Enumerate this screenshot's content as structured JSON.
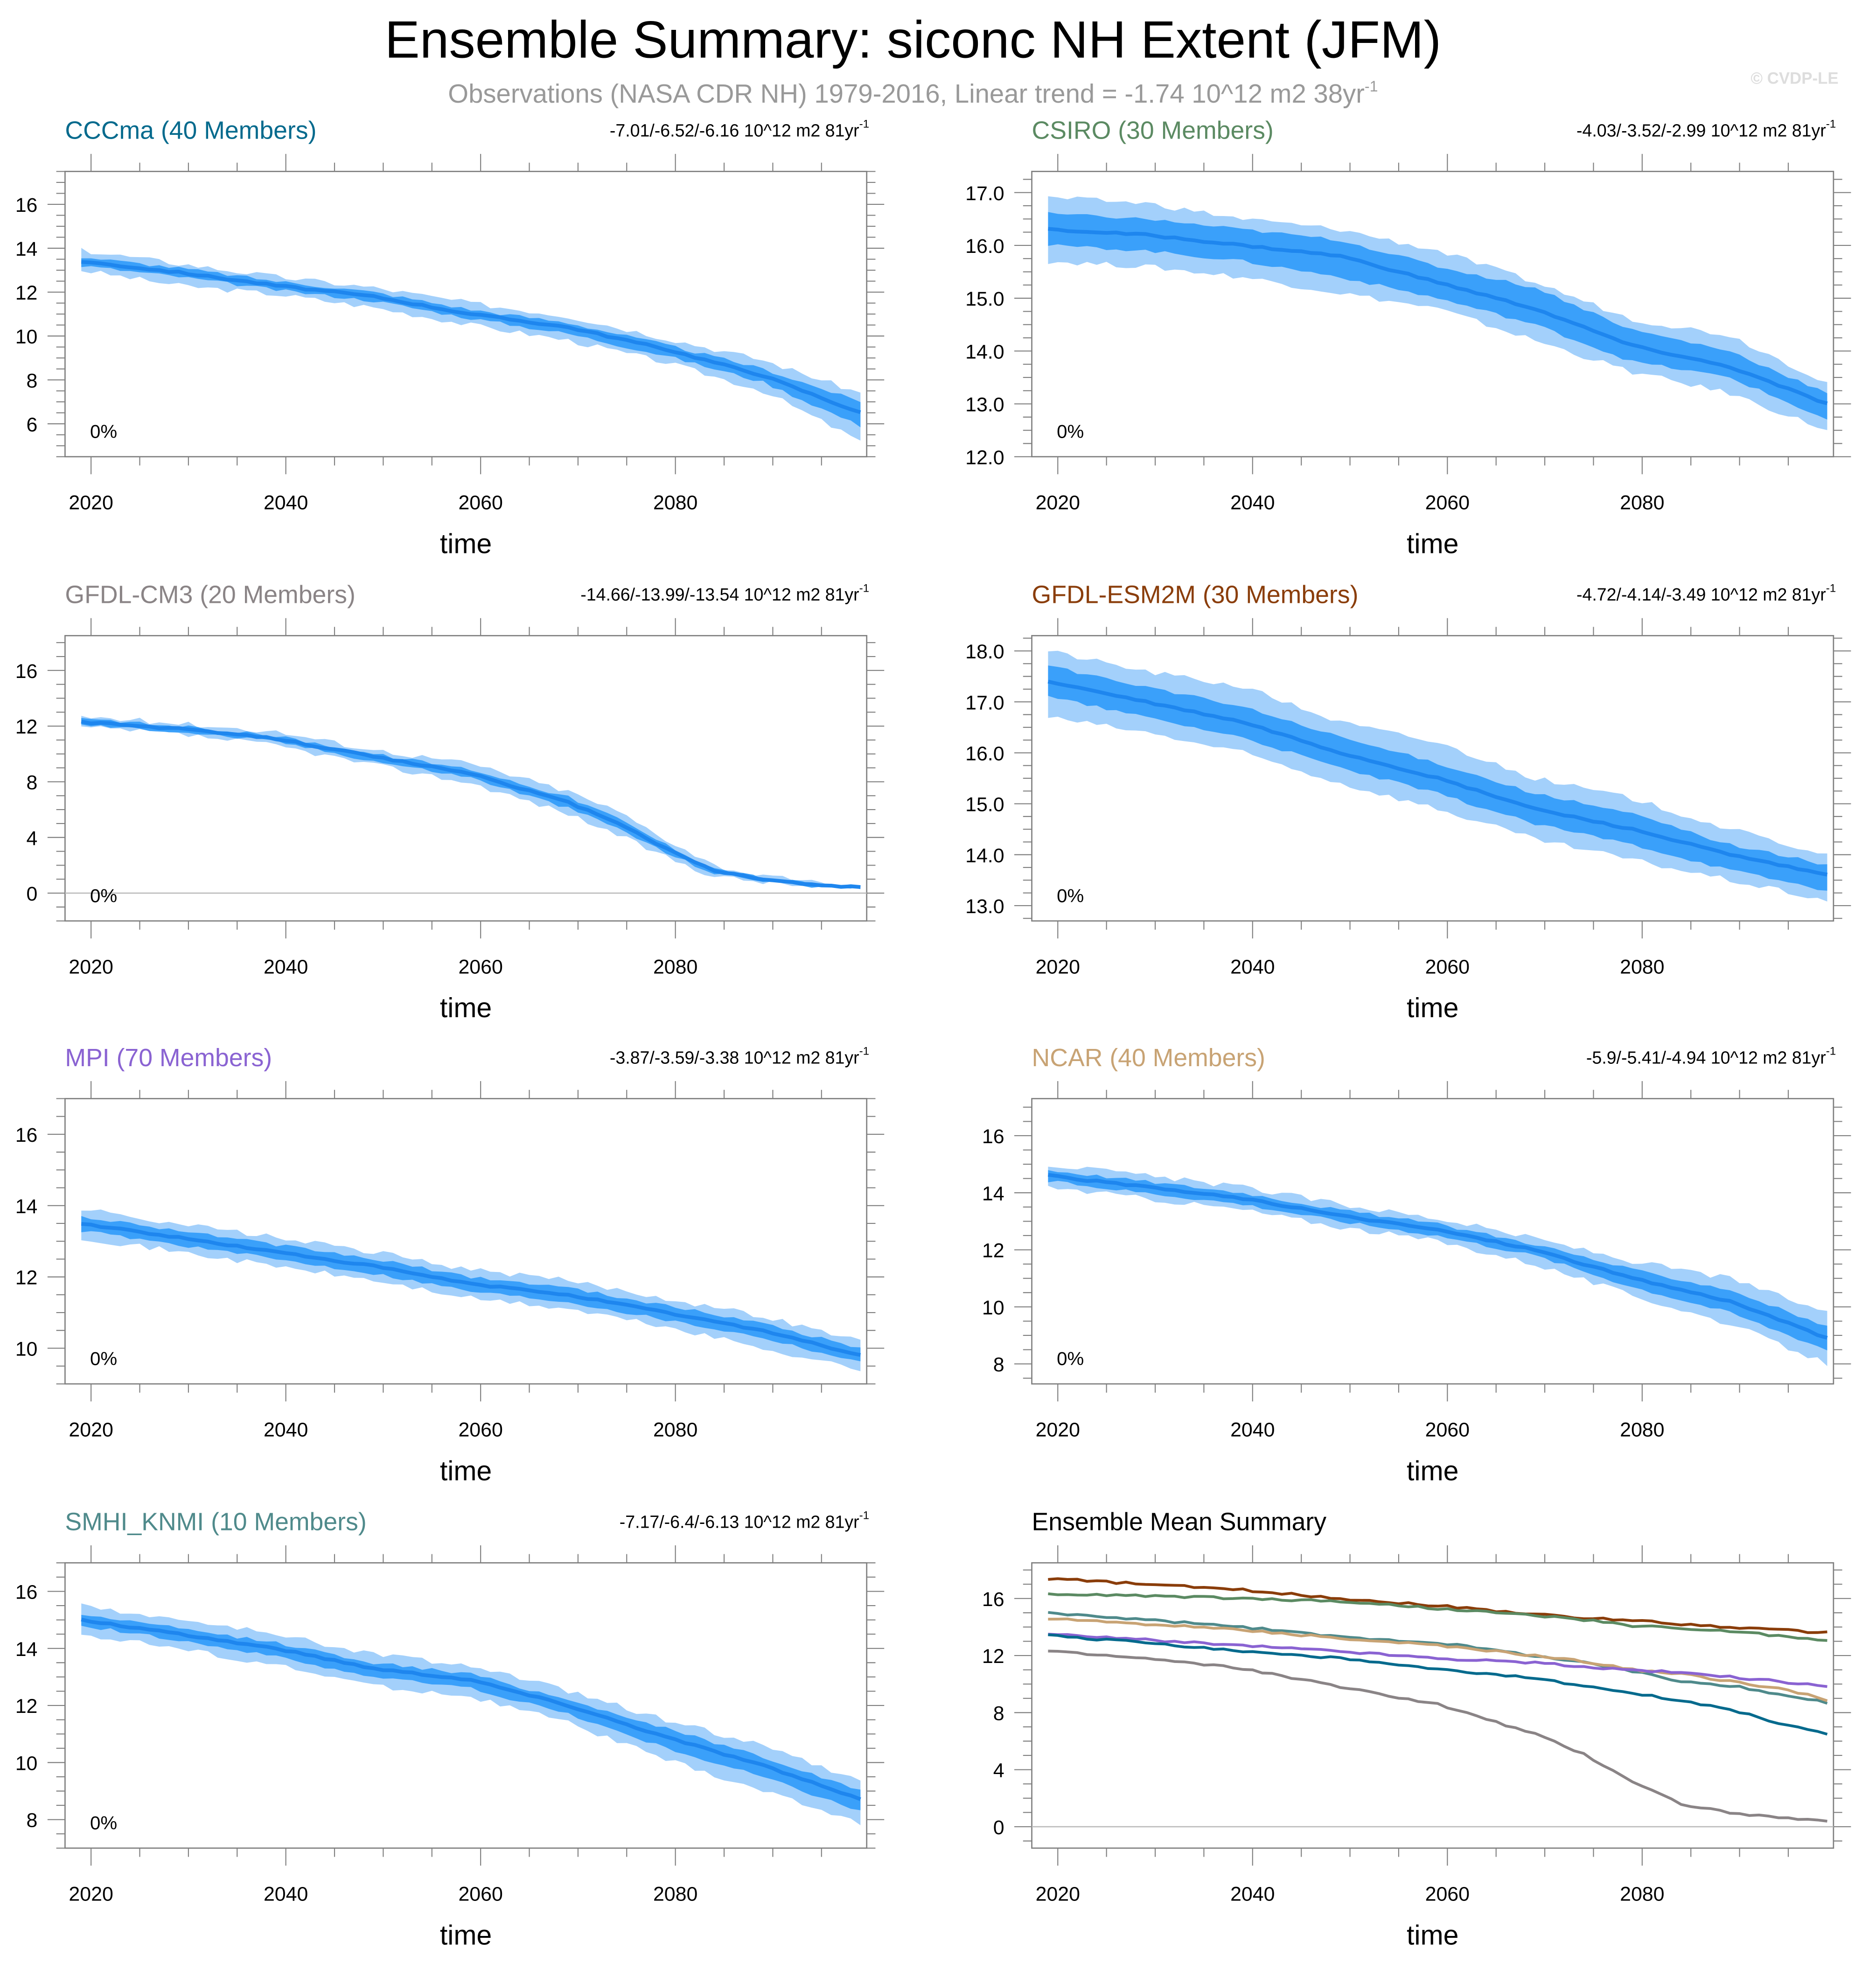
{
  "title": "Ensemble Summary: siconc NH Extent (JFM)",
  "subtitle": "Observations (NASA CDR NH) 1979-2016, Linear trend = -1.74 10^12 m2 38yr",
  "subtitle_superscript": "-1",
  "copyright": "© CVDP-LE",
  "colors": {
    "band_outer": "#a3d0fb",
    "band_inner": "#3aa0fa",
    "mean_line": "#1e86ee",
    "axis": "#7f7f7f",
    "text": "#000000",
    "subtitle": "#999999",
    "copyright": "#dddddd"
  },
  "chart_data": [
    {
      "type": "area",
      "title": "CCCma (40 Members)",
      "title_color": "#046a8d",
      "trend_label": "-7.01/-6.52/-6.16 10^12 m2 81yr",
      "trend_superscript": "-1",
      "annotation": "0%",
      "xlabel": "time",
      "ylabel": "",
      "xlim": [
        2019,
        2099
      ],
      "ylim": [
        4.5,
        17.5
      ],
      "xticks": [
        2020,
        2040,
        2060,
        2080
      ],
      "yticks": [
        6,
        8,
        10,
        12,
        14,
        16
      ],
      "ytick_labels": [
        "6",
        "8",
        "10",
        "12",
        "14",
        "16"
      ],
      "x": [
        2019,
        2029,
        2039,
        2049,
        2059,
        2069,
        2079,
        2089,
        2099
      ],
      "series": [
        {
          "name": "ensemble mean",
          "values": [
            13.4,
            12.9,
            12.3,
            11.8,
            11.0,
            10.4,
            9.4,
            8.2,
            6.5
          ]
        },
        {
          "name": "inner band low",
          "values": [
            13.2,
            12.7,
            12.1,
            11.6,
            10.8,
            10.1,
            9.1,
            7.9,
            5.9
          ]
        },
        {
          "name": "inner band high",
          "values": [
            13.6,
            13.1,
            12.5,
            12.0,
            11.2,
            10.6,
            9.6,
            8.5,
            7.0
          ]
        },
        {
          "name": "outer band low",
          "values": [
            13.0,
            12.3,
            11.9,
            11.3,
            10.5,
            9.8,
            8.8,
            7.5,
            5.2
          ]
        },
        {
          "name": "outer band high",
          "values": [
            13.9,
            13.3,
            12.7,
            12.2,
            11.5,
            10.9,
            9.9,
            8.9,
            7.4
          ]
        }
      ]
    },
    {
      "type": "area",
      "title": "CSIRO (30 Members)",
      "title_color": "#5b8a62",
      "trend_label": "-4.03/-3.52/-2.99 10^12 m2 81yr",
      "trend_superscript": "-1",
      "annotation": "0%",
      "xlabel": "time",
      "ylabel": "",
      "xlim": [
        2019,
        2099
      ],
      "ylim": [
        12.0,
        17.4
      ],
      "xticks": [
        2020,
        2040,
        2060,
        2080
      ],
      "yticks": [
        12,
        13,
        14,
        15,
        16,
        17
      ],
      "ytick_labels": [
        "12.0",
        "13.0",
        "14.0",
        "15.0",
        "16.0",
        "17.0"
      ],
      "x": [
        2019,
        2029,
        2039,
        2049,
        2059,
        2069,
        2079,
        2089,
        2099
      ],
      "series": [
        {
          "name": "ensemble mean",
          "values": [
            16.3,
            16.2,
            16.0,
            15.8,
            15.3,
            14.8,
            14.1,
            13.7,
            13.0
          ]
        },
        {
          "name": "inner band low",
          "values": [
            16.0,
            15.9,
            15.7,
            15.4,
            15.0,
            14.5,
            13.8,
            13.5,
            12.7
          ]
        },
        {
          "name": "inner band high",
          "values": [
            16.6,
            16.5,
            16.3,
            16.1,
            15.6,
            15.2,
            14.4,
            14.0,
            13.2
          ]
        },
        {
          "name": "outer band low",
          "values": [
            15.7,
            15.6,
            15.4,
            15.1,
            14.8,
            14.2,
            13.6,
            13.2,
            12.5
          ]
        },
        {
          "name": "outer band high",
          "values": [
            16.9,
            16.8,
            16.5,
            16.3,
            15.9,
            15.3,
            14.6,
            14.3,
            13.4
          ]
        }
      ]
    },
    {
      "type": "area",
      "title": "GFDL-CM3 (20 Members)",
      "title_color": "#8a8486",
      "trend_label": "-14.66/-13.99/-13.54 10^12 m2 81yr",
      "trend_superscript": "-1",
      "annotation": "0%",
      "xlabel": "time",
      "ylabel": "",
      "xlim": [
        2019,
        2099
      ],
      "ylim": [
        -2,
        18.5
      ],
      "xticks": [
        2020,
        2040,
        2060,
        2080
      ],
      "yticks": [
        0,
        4,
        8,
        12,
        16
      ],
      "ytick_labels": [
        "0",
        "4",
        "8",
        "12",
        "16"
      ],
      "zero_line": true,
      "x": [
        2019,
        2029,
        2039,
        2049,
        2059,
        2069,
        2074,
        2079,
        2084,
        2089,
        2094,
        2099
      ],
      "series": [
        {
          "name": "ensemble mean",
          "values": [
            12.3,
            11.8,
            11.1,
            9.8,
            8.6,
            6.5,
            5.1,
            3.2,
            1.6,
            1.0,
            0.6,
            0.4
          ]
        },
        {
          "name": "inner band low",
          "values": [
            12.1,
            11.6,
            10.9,
            9.5,
            8.3,
            6.1,
            4.7,
            2.9,
            1.4,
            0.9,
            0.5,
            0.35
          ]
        },
        {
          "name": "inner band high",
          "values": [
            12.5,
            12.0,
            11.3,
            10.0,
            8.9,
            6.9,
            5.4,
            3.5,
            1.8,
            1.1,
            0.7,
            0.45
          ]
        },
        {
          "name": "outer band low",
          "values": [
            11.9,
            11.4,
            10.6,
            9.2,
            7.9,
            5.7,
            4.2,
            2.6,
            1.2,
            0.8,
            0.45,
            0.3
          ]
        },
        {
          "name": "outer band high",
          "values": [
            12.7,
            12.2,
            11.6,
            10.3,
            9.3,
            7.3,
            5.9,
            3.9,
            2.0,
            1.2,
            0.8,
            0.5
          ]
        }
      ]
    },
    {
      "type": "area",
      "title": "GFDL-ESM2M (30 Members)",
      "title_color": "#8a3d0a",
      "trend_label": "-4.72/-4.14/-3.49 10^12 m2 81yr",
      "trend_superscript": "-1",
      "annotation": "0%",
      "xlabel": "time",
      "ylabel": "",
      "xlim": [
        2019,
        2099
      ],
      "ylim": [
        12.7,
        18.3
      ],
      "xticks": [
        2020,
        2040,
        2060,
        2080
      ],
      "yticks": [
        13,
        14,
        15,
        16,
        17,
        18
      ],
      "ytick_labels": [
        "13.0",
        "14.0",
        "15.0",
        "16.0",
        "17.0",
        "18.0"
      ],
      "x": [
        2019,
        2029,
        2039,
        2049,
        2059,
        2069,
        2079,
        2089,
        2099
      ],
      "series": [
        {
          "name": "ensemble mean",
          "values": [
            17.4,
            17.0,
            16.6,
            16.0,
            15.5,
            14.9,
            14.5,
            14.0,
            13.6
          ]
        },
        {
          "name": "inner band low",
          "values": [
            17.1,
            16.7,
            16.3,
            15.7,
            15.2,
            14.6,
            14.2,
            13.7,
            13.3
          ]
        },
        {
          "name": "inner band high",
          "values": [
            17.7,
            17.3,
            16.9,
            16.3,
            15.8,
            15.2,
            14.8,
            14.2,
            13.8
          ]
        },
        {
          "name": "outer band low",
          "values": [
            16.7,
            16.4,
            16.0,
            15.4,
            14.9,
            14.3,
            13.9,
            13.5,
            13.1
          ]
        },
        {
          "name": "outer band high",
          "values": [
            18.0,
            17.6,
            17.3,
            16.6,
            16.2,
            15.5,
            15.1,
            14.5,
            14.0
          ]
        }
      ]
    },
    {
      "type": "area",
      "title": "MPI (70 Members)",
      "title_color": "#8a63d2",
      "trend_label": "-3.87/-3.59/-3.38 10^12 m2 81yr",
      "trend_superscript": "-1",
      "annotation": "0%",
      "xlabel": "time",
      "ylabel": "",
      "xlim": [
        2019,
        2099
      ],
      "ylim": [
        9.0,
        17.0
      ],
      "xticks": [
        2020,
        2040,
        2060,
        2080
      ],
      "yticks": [
        10,
        12,
        14,
        16
      ],
      "ytick_labels": [
        "10",
        "12",
        "14",
        "16"
      ],
      "x": [
        2019,
        2029,
        2039,
        2049,
        2059,
        2069,
        2079,
        2089,
        2099
      ],
      "series": [
        {
          "name": "ensemble mean",
          "values": [
            13.5,
            13.1,
            12.7,
            12.3,
            11.8,
            11.5,
            11.0,
            10.5,
            9.8
          ]
        },
        {
          "name": "inner band low",
          "values": [
            13.3,
            12.9,
            12.5,
            12.1,
            11.6,
            11.3,
            10.8,
            10.3,
            9.6
          ]
        },
        {
          "name": "inner band high",
          "values": [
            13.7,
            13.3,
            12.9,
            12.5,
            12.0,
            11.7,
            11.2,
            10.7,
            10.0
          ]
        },
        {
          "name": "outer band low",
          "values": [
            13.1,
            12.7,
            12.3,
            11.9,
            11.4,
            11.1,
            10.6,
            10.0,
            9.4
          ]
        },
        {
          "name": "outer band high",
          "values": [
            13.9,
            13.5,
            13.1,
            12.7,
            12.2,
            11.9,
            11.4,
            10.9,
            10.2
          ]
        }
      ]
    },
    {
      "type": "area",
      "title": "NCAR (40 Members)",
      "title_color": "#c8a374",
      "trend_label": "-5.9/-5.41/-4.94 10^12 m2 81yr",
      "trend_superscript": "-1",
      "annotation": "0%",
      "xlabel": "time",
      "ylabel": "",
      "xlim": [
        2019,
        2099
      ],
      "ylim": [
        7.3,
        17.3
      ],
      "xticks": [
        2020,
        2040,
        2060,
        2080
      ],
      "yticks": [
        8,
        10,
        12,
        14,
        16
      ],
      "ytick_labels": [
        "8",
        "10",
        "12",
        "14",
        "16"
      ],
      "x": [
        2019,
        2029,
        2039,
        2049,
        2059,
        2069,
        2079,
        2089,
        2099
      ],
      "series": [
        {
          "name": "ensemble mean",
          "values": [
            14.6,
            14.2,
            13.8,
            13.2,
            12.7,
            12.0,
            11.0,
            10.2,
            8.9
          ]
        },
        {
          "name": "inner band low",
          "values": [
            14.4,
            14.0,
            13.6,
            13.0,
            12.5,
            11.8,
            10.7,
            9.8,
            8.5
          ]
        },
        {
          "name": "inner band high",
          "values": [
            14.8,
            14.4,
            14.0,
            13.4,
            12.9,
            12.2,
            11.3,
            10.6,
            9.3
          ]
        },
        {
          "name": "outer band low",
          "values": [
            14.2,
            13.8,
            13.4,
            12.8,
            12.3,
            11.5,
            10.4,
            9.4,
            8.0
          ]
        },
        {
          "name": "outer band high",
          "values": [
            15.0,
            14.6,
            14.2,
            13.6,
            13.1,
            12.4,
            11.6,
            11.0,
            9.8
          ]
        }
      ]
    },
    {
      "type": "area",
      "title": "SMHI_KNMI (10 Members)",
      "title_color": "#4f8a8b",
      "trend_label": "-7.17/-6.4/-6.13 10^12 m2 81yr",
      "trend_superscript": "-1",
      "annotation": "0%",
      "xlabel": "time",
      "ylabel": "",
      "xlim": [
        2019,
        2099
      ],
      "ylim": [
        7.0,
        17.0
      ],
      "xticks": [
        2020,
        2040,
        2060,
        2080
      ],
      "yticks": [
        8,
        10,
        12,
        14,
        16
      ],
      "ytick_labels": [
        "8",
        "10",
        "12",
        "14",
        "16"
      ],
      "x": [
        2019,
        2029,
        2039,
        2049,
        2059,
        2069,
        2079,
        2089,
        2099
      ],
      "series": [
        {
          "name": "ensemble mean",
          "values": [
            15.0,
            14.5,
            14.0,
            13.3,
            12.9,
            12.0,
            10.9,
            9.9,
            8.7
          ]
        },
        {
          "name": "inner band low",
          "values": [
            14.8,
            14.3,
            13.7,
            13.0,
            12.6,
            11.7,
            10.5,
            9.5,
            8.3
          ]
        },
        {
          "name": "inner band high",
          "values": [
            15.2,
            14.7,
            14.2,
            13.5,
            13.1,
            12.2,
            11.2,
            10.2,
            9.0
          ]
        },
        {
          "name": "outer band low",
          "values": [
            14.5,
            14.0,
            13.4,
            12.7,
            12.3,
            11.4,
            10.1,
            9.0,
            7.9
          ]
        },
        {
          "name": "outer band high",
          "values": [
            15.5,
            15.0,
            14.5,
            13.8,
            13.4,
            12.5,
            11.5,
            10.6,
            9.3
          ]
        }
      ]
    },
    {
      "type": "line",
      "title": "Ensemble Mean Summary",
      "title_color": "#000000",
      "xlabel": "time",
      "ylabel": "",
      "xlim": [
        2019,
        2099
      ],
      "ylim": [
        -1.5,
        18.5
      ],
      "xticks": [
        2020,
        2040,
        2060,
        2080
      ],
      "yticks": [
        0,
        4,
        8,
        12,
        16
      ],
      "ytick_labels": [
        "0",
        "4",
        "8",
        "12",
        "16"
      ],
      "zero_line": true,
      "x": [
        2019,
        2029,
        2039,
        2049,
        2059,
        2069,
        2074,
        2079,
        2084,
        2089,
        2094,
        2099
      ],
      "series": [
        {
          "name": "GFDL-ESM2M",
          "color": "#8a3d0a",
          "values": [
            17.4,
            17.0,
            16.6,
            16.0,
            15.5,
            14.9,
            14.6,
            14.5,
            14.2,
            14.0,
            13.8,
            13.6
          ]
        },
        {
          "name": "CSIRO",
          "color": "#5b8a62",
          "values": [
            16.3,
            16.2,
            16.0,
            15.8,
            15.3,
            14.8,
            14.5,
            14.1,
            13.9,
            13.7,
            13.4,
            13.0
          ]
        },
        {
          "name": "SMHI_KNMI",
          "color": "#4f8a8b",
          "values": [
            15.0,
            14.5,
            14.0,
            13.3,
            12.9,
            12.0,
            11.5,
            10.9,
            10.2,
            9.9,
            9.3,
            8.7
          ]
        },
        {
          "name": "NCAR",
          "color": "#c8a374",
          "values": [
            14.6,
            14.2,
            13.8,
            13.2,
            12.7,
            12.0,
            11.6,
            11.0,
            10.7,
            10.2,
            9.7,
            8.9
          ]
        },
        {
          "name": "MPI",
          "color": "#8a63d2",
          "values": [
            13.5,
            13.1,
            12.7,
            12.3,
            11.8,
            11.5,
            11.2,
            11.0,
            10.8,
            10.5,
            10.2,
            9.8
          ]
        },
        {
          "name": "CCCma",
          "color": "#046a8d",
          "values": [
            13.4,
            12.9,
            12.3,
            11.8,
            11.0,
            10.4,
            9.9,
            9.4,
            8.8,
            8.2,
            7.3,
            6.5
          ]
        },
        {
          "name": "GFDL-CM3",
          "color": "#8a8486",
          "values": [
            12.3,
            11.8,
            11.1,
            9.8,
            8.6,
            6.5,
            5.1,
            3.2,
            1.6,
            1.0,
            0.6,
            0.4
          ]
        }
      ]
    }
  ]
}
